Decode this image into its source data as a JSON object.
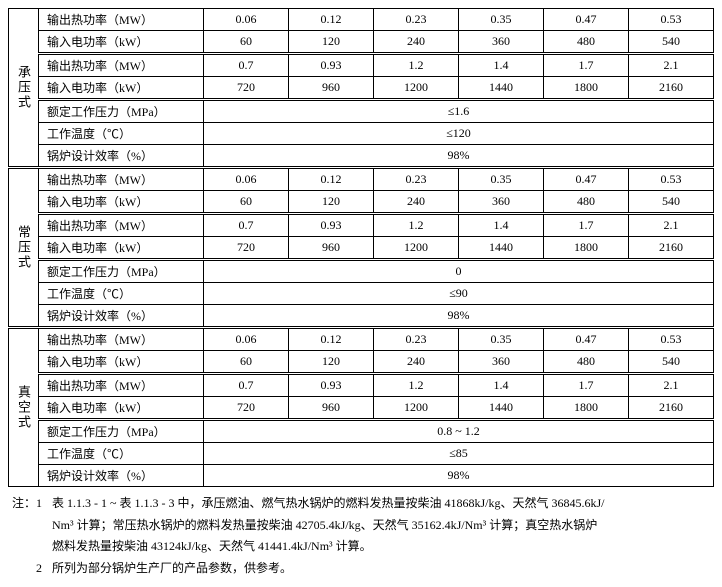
{
  "sections": [
    {
      "name": "承压式"
    },
    {
      "name": "常压式"
    },
    {
      "name": "真空式"
    }
  ],
  "labels": {
    "r1": "输出热功率（MW）",
    "r2": "输入电功率（kW）",
    "r3": "输出热功率（MW）",
    "r4": "输入电功率（kW）",
    "r5": "额定工作压力（MPa）",
    "r6": "工作温度（℃）",
    "r7": "锅炉设计效率（%）"
  },
  "s1": {
    "r1": [
      "0.06",
      "0.12",
      "0.23",
      "0.35",
      "0.47",
      "0.53"
    ],
    "r2": [
      "60",
      "120",
      "240",
      "360",
      "480",
      "540"
    ],
    "r3": [
      "0.7",
      "0.93",
      "1.2",
      "1.4",
      "1.7",
      "2.1"
    ],
    "r4": [
      "720",
      "960",
      "1200",
      "1440",
      "1800",
      "2160"
    ],
    "r5": "≤1.6",
    "r6": "≤120",
    "r7": "98%"
  },
  "s2": {
    "r1": [
      "0.06",
      "0.12",
      "0.23",
      "0.35",
      "0.47",
      "0.53"
    ],
    "r2": [
      "60",
      "120",
      "240",
      "360",
      "480",
      "540"
    ],
    "r3": [
      "0.7",
      "0.93",
      "1.2",
      "1.4",
      "1.7",
      "2.1"
    ],
    "r4": [
      "720",
      "960",
      "1200",
      "1440",
      "1800",
      "2160"
    ],
    "r5": "0",
    "r6": "≤90",
    "r7": "98%"
  },
  "s3": {
    "r1": [
      "0.06",
      "0.12",
      "0.23",
      "0.35",
      "0.47",
      "0.53"
    ],
    "r2": [
      "60",
      "120",
      "240",
      "360",
      "480",
      "540"
    ],
    "r3": [
      "0.7",
      "0.93",
      "1.2",
      "1.4",
      "1.7",
      "2.1"
    ],
    "r4": [
      "720",
      "960",
      "1200",
      "1440",
      "1800",
      "2160"
    ],
    "r5": "0.8 ~ 1.2",
    "r6": "≤85",
    "r7": "98%"
  },
  "note": {
    "tag": "注：",
    "n1a": "表 1.1.3 - 1 ~ 表 1.1.3 - 3 中，承压燃油、燃气热水锅炉的燃料发热量按柴油 41868kJ/kg、天然气 36845.6kJ/",
    "n1b": "Nm³ 计算；常压热水锅炉的燃料发热量按柴油 42705.4kJ/kg、天然气 35162.4kJ/Nm³ 计算；真空热水锅炉",
    "n1c": "燃料发热量按柴油 43124kJ/kg、天然气 41441.4kJ/Nm³ 计算。",
    "n2": "所列为部分锅炉生产厂的产品参数，供参考。"
  },
  "col_widths": {
    "vh": 30,
    "label": 165,
    "data": 85
  }
}
